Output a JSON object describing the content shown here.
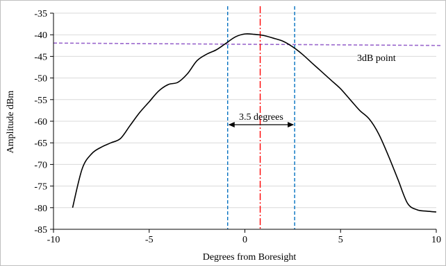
{
  "chart_data": {
    "type": "line",
    "title": "",
    "xlabel": "Degrees from Boresight",
    "ylabel": "Amplitude dBm",
    "xlim": [
      -10,
      10
    ],
    "ylim": [
      -85,
      -35
    ],
    "x_ticks": [
      -10,
      -5,
      0,
      5,
      10
    ],
    "y_ticks": [
      -35,
      -40,
      -45,
      -50,
      -55,
      -60,
      -65,
      -70,
      -75,
      -80,
      -85
    ],
    "grid": "horizontal",
    "legend": "none",
    "series": [
      {
        "color": "#000000",
        "x": [
          -9.0,
          -8.5,
          -8.0,
          -7.5,
          -7.0,
          -6.5,
          -6.0,
          -5.5,
          -5.0,
          -4.5,
          -4.0,
          -3.5,
          -3.0,
          -2.5,
          -2.0,
          -1.5,
          -1.0,
          -0.5,
          0.0,
          0.5,
          1.0,
          1.5,
          2.0,
          2.5,
          3.0,
          3.5,
          4.0,
          4.5,
          5.0,
          5.5,
          6.0,
          6.5,
          7.0,
          7.5,
          8.0,
          8.5,
          9.0,
          9.5,
          10.0
        ],
        "values": [
          -80,
          -71,
          -67.5,
          -66,
          -65,
          -64,
          -61,
          -58,
          -55.5,
          -53,
          -51.5,
          -51,
          -49,
          -46,
          -44.5,
          -43.5,
          -42,
          -40.5,
          -39.8,
          -39.9,
          -40.2,
          -40.8,
          -41.5,
          -42.8,
          -44.5,
          -46.5,
          -48.5,
          -50.5,
          -52.5,
          -55,
          -57.5,
          -59.5,
          -63,
          -68,
          -73.5,
          -79,
          -80.5,
          -80.8,
          -81
        ]
      }
    ],
    "reference_lines": {
      "threshold_level": -42.4,
      "threshold_color": "#9966cc",
      "threshold_label": "3dB point",
      "boresight_x": 0.8,
      "boresight_color": "#ff0000",
      "beam_edges_x": [
        -0.9,
        2.6
      ],
      "beam_edge_color": "#0070c0",
      "beamwidth_label": "3.5 degrees",
      "beamwidth_arrow_y": -60.8
    }
  }
}
